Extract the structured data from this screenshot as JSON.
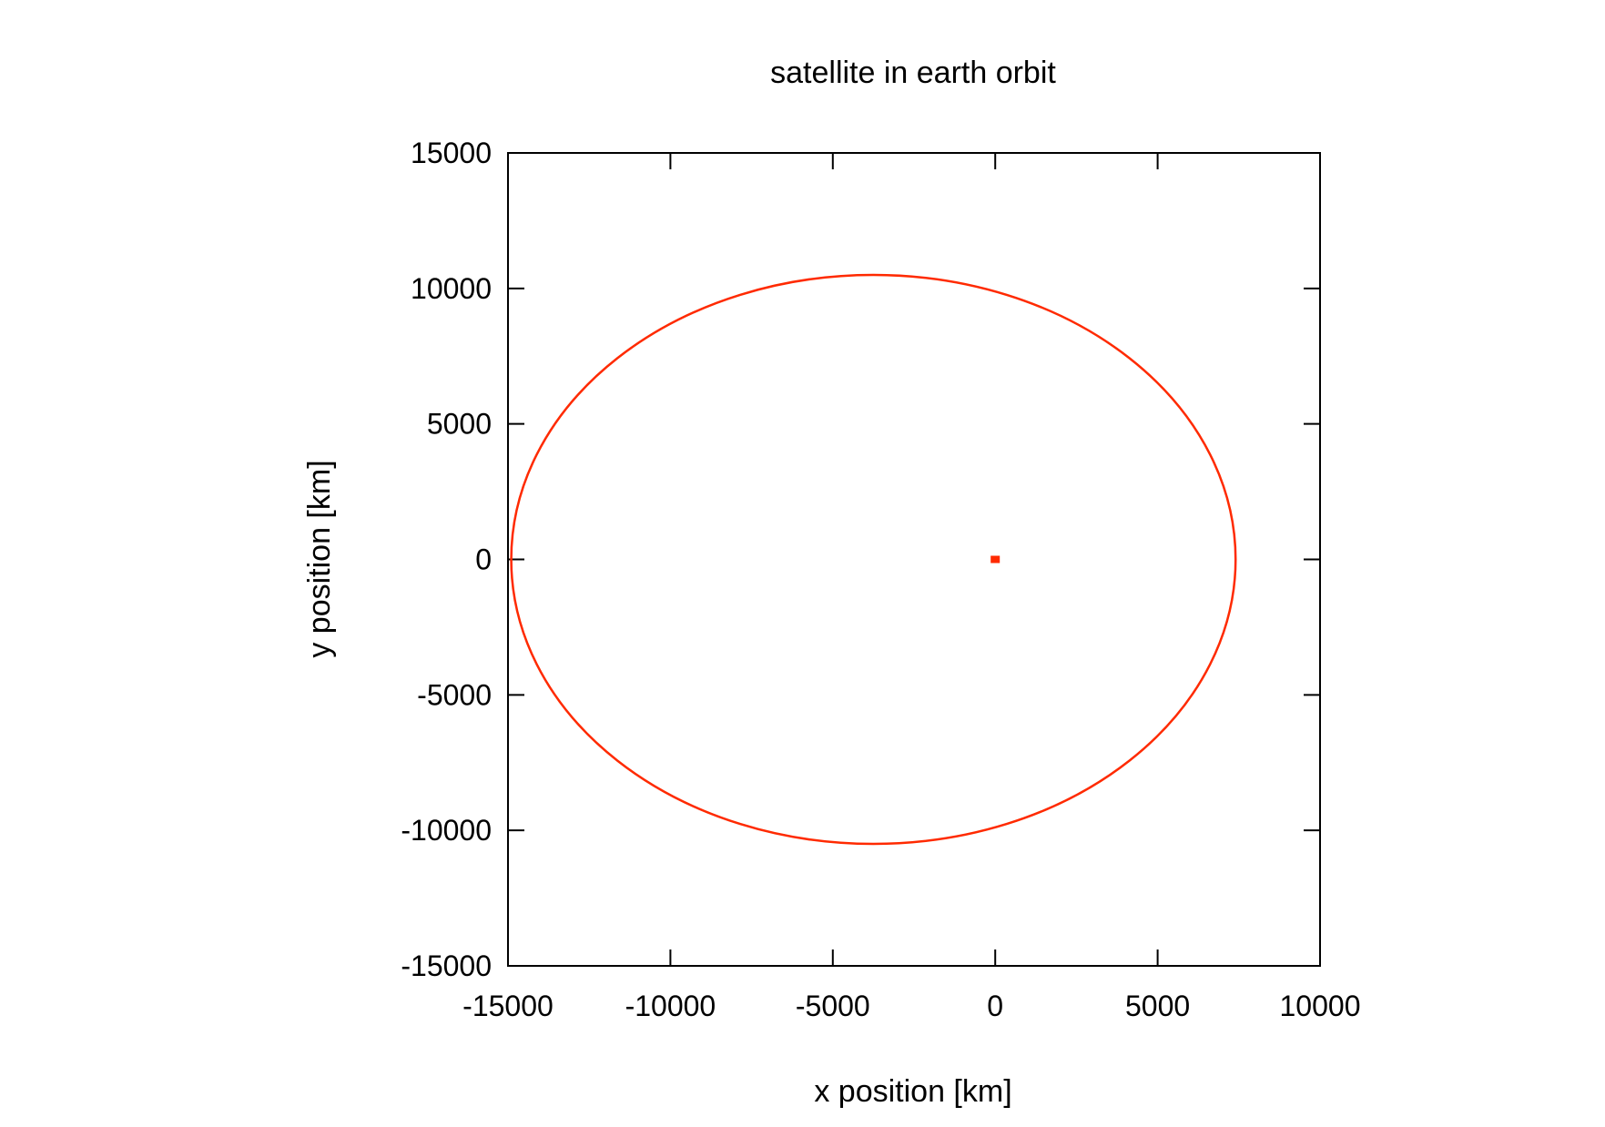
{
  "chart_data": {
    "type": "line",
    "title": "satellite in earth orbit",
    "xlabel": "x position [km]",
    "ylabel": "y position [km]",
    "xlim": [
      -15000,
      10000
    ],
    "ylim": [
      -15000,
      15000
    ],
    "xticks": [
      -15000,
      -10000,
      -5000,
      0,
      5000,
      10000
    ],
    "yticks": [
      -15000,
      -10000,
      -5000,
      0,
      5000,
      10000,
      15000
    ],
    "xtick_labels": [
      "-15000",
      "-10000",
      "-5000",
      "0",
      "5000",
      "10000"
    ],
    "ytick_labels": [
      "-15000",
      "-10000",
      "-5000",
      "0",
      "5000",
      "10000",
      "15000"
    ],
    "grid": false,
    "legend": "none",
    "series": [
      {
        "kind": "ellipse",
        "color": "#ff2a00",
        "center_x": -3750,
        "center_y": 0,
        "semi_major_x": 11150,
        "semi_minor_y": 10500
      },
      {
        "kind": "point",
        "color": "#ff2a00",
        "x": 0,
        "y": 0
      }
    ]
  }
}
